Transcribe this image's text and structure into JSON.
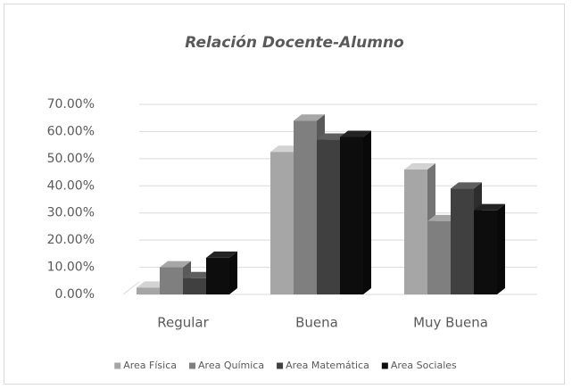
{
  "chart_data": {
    "type": "bar3d",
    "title": "Relación Docente-Alumno",
    "categories": [
      "Regular",
      "Buena",
      "Muy Buena"
    ],
    "series": [
      {
        "name": "Area Física",
        "color": "#a6a6a6",
        "values": [
          2.5,
          52.5,
          46
        ]
      },
      {
        "name": "Area Química",
        "color": "#7f7f7f",
        "values": [
          10,
          64,
          27
        ]
      },
      {
        "name": "Area Matemática",
        "color": "#404040",
        "values": [
          6,
          57,
          39
        ]
      },
      {
        "name": "Area Sociales",
        "color": "#0d0d0d",
        "values": [
          13.5,
          58,
          31
        ]
      }
    ],
    "ylim": [
      0,
      70
    ],
    "yticks": [
      {
        "value": 0,
        "label": "0.00%"
      },
      {
        "value": 10,
        "label": "10.00%"
      },
      {
        "value": 20,
        "label": "20.00%"
      },
      {
        "value": 30,
        "label": "30.00%"
      },
      {
        "value": 40,
        "label": "40.00%"
      },
      {
        "value": 50,
        "label": "50.00%"
      },
      {
        "value": 60,
        "label": "60.00%"
      },
      {
        "value": 70,
        "label": "70.00%"
      }
    ],
    "grid": true,
    "legend": "bottom"
  }
}
